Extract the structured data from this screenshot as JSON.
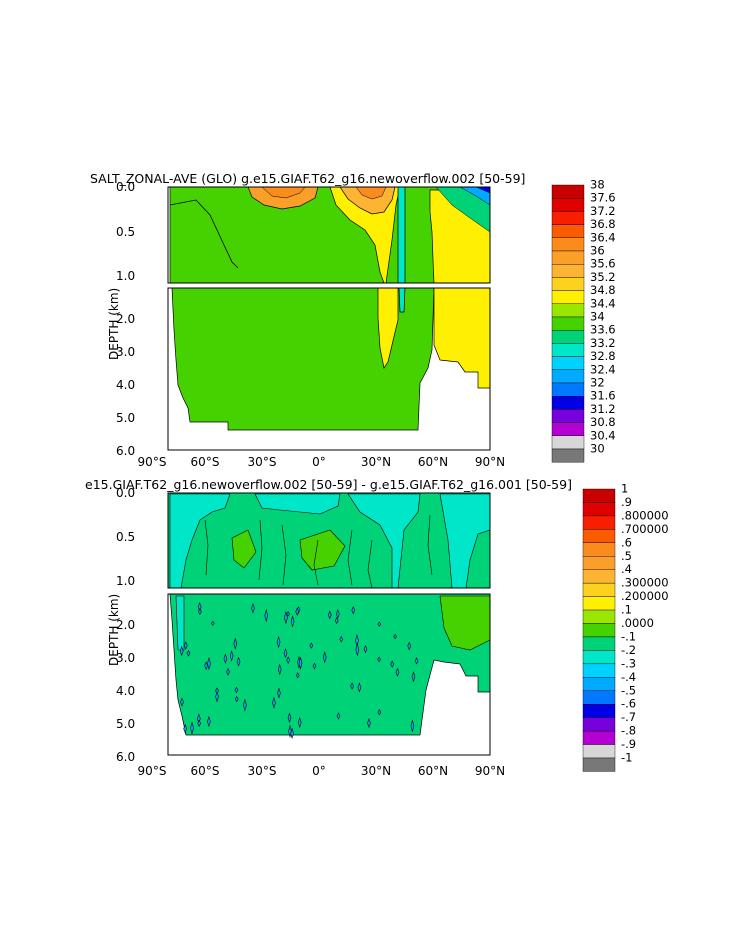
{
  "chart_data": [
    {
      "type": "heatmap",
      "title": "SALT_ZONAL-AVE (GLO) g.e15.GIAF.T62_g16.newoverflow.002 [50-59]",
      "ylabel": "DEPTH (km)",
      "xlabel": "",
      "x_ticks": [
        "90°S",
        "60°S",
        "30°S",
        "0°",
        "30°N",
        "60°N",
        "90°N"
      ],
      "y_ticks_upper": [
        "0.0",
        "0.5",
        "1.0"
      ],
      "y_ticks_lower": [
        "2.0",
        "3.0",
        "4.0",
        "5.0",
        "6.0"
      ],
      "xlim": [
        -90,
        90
      ],
      "ylim_upper_km": [
        0,
        1.1
      ],
      "ylim_lower_km": [
        1.2,
        6
      ],
      "colorbar": {
        "labels": [
          "38",
          "37.6",
          "37.2",
          "36.8",
          "36.4",
          "36",
          "35.6",
          "35.2",
          "34.8",
          "34.4",
          "34",
          "33.6",
          "33.2",
          "32.8",
          "32.4",
          "32",
          "31.6",
          "31.2",
          "30.8",
          "30.4",
          "30"
        ],
        "colors": [
          "#c80000",
          "#e10000",
          "#f81e00",
          "#fa5a00",
          "#fa8c1e",
          "#faa028",
          "#fcb432",
          "#fcd21e",
          "#fef000",
          "#9ae600",
          "#46d200",
          "#00d278",
          "#00e6c8",
          "#00d2ff",
          "#00aaff",
          "#0078ff",
          "#0000e6",
          "#7800dc",
          "#b400d2",
          "#d7d7d7",
          "#787878"
        ]
      },
      "regions": {
        "green_range": "34.4-34.8",
        "yellow_range": "34.8-35.2",
        "orange_max_range": "36.4-36.8",
        "cyan_strip_range": "33.6-34"
      }
    },
    {
      "type": "heatmap",
      "title": "e15.GIAF.T62_g16.newoverflow.002 [50-59] - g.e15.GIAF.T62_g16.001 [50-59]",
      "ylabel": "DEPTH (km)",
      "xlabel": "",
      "x_ticks": [
        "90°S",
        "60°S",
        "30°S",
        "0°",
        "30°N",
        "60°N",
        "90°N"
      ],
      "y_ticks_upper": [
        "0.0",
        "0.5",
        "1.0"
      ],
      "y_ticks_lower": [
        "2.0",
        "3.0",
        "4.0",
        "5.0",
        "6.0"
      ],
      "xlim": [
        -90,
        90
      ],
      "ylim_upper_km": [
        0,
        1.1
      ],
      "ylim_lower_km": [
        1.2,
        6
      ],
      "colorbar": {
        "labels": [
          "1",
          ".9",
          ".800000",
          ".700000",
          ".6",
          ".5",
          ".4",
          ".300000",
          ".200000",
          ".1",
          ".0000",
          "-.1",
          "-.2",
          "-.3",
          "-.4",
          "-.5",
          "-.6",
          "-.7",
          "-.8",
          "-.9",
          "-1"
        ],
        "colors": [
          "#c80000",
          "#e10000",
          "#f81e00",
          "#fa5a00",
          "#fa8c1e",
          "#faa028",
          "#fcb432",
          "#fcd21e",
          "#fef000",
          "#9ae600",
          "#46d200",
          "#00d278",
          "#00e6c8",
          "#00d2ff",
          "#00aaff",
          "#0078ff",
          "#0000e6",
          "#7800dc",
          "#b400d2",
          "#d7d7d7",
          "#787878"
        ]
      },
      "regions": {
        "dominant_range": ".0000-.1",
        "cyan_range": "-.1-.0000",
        "light_green_range": ".1-.2"
      }
    }
  ]
}
